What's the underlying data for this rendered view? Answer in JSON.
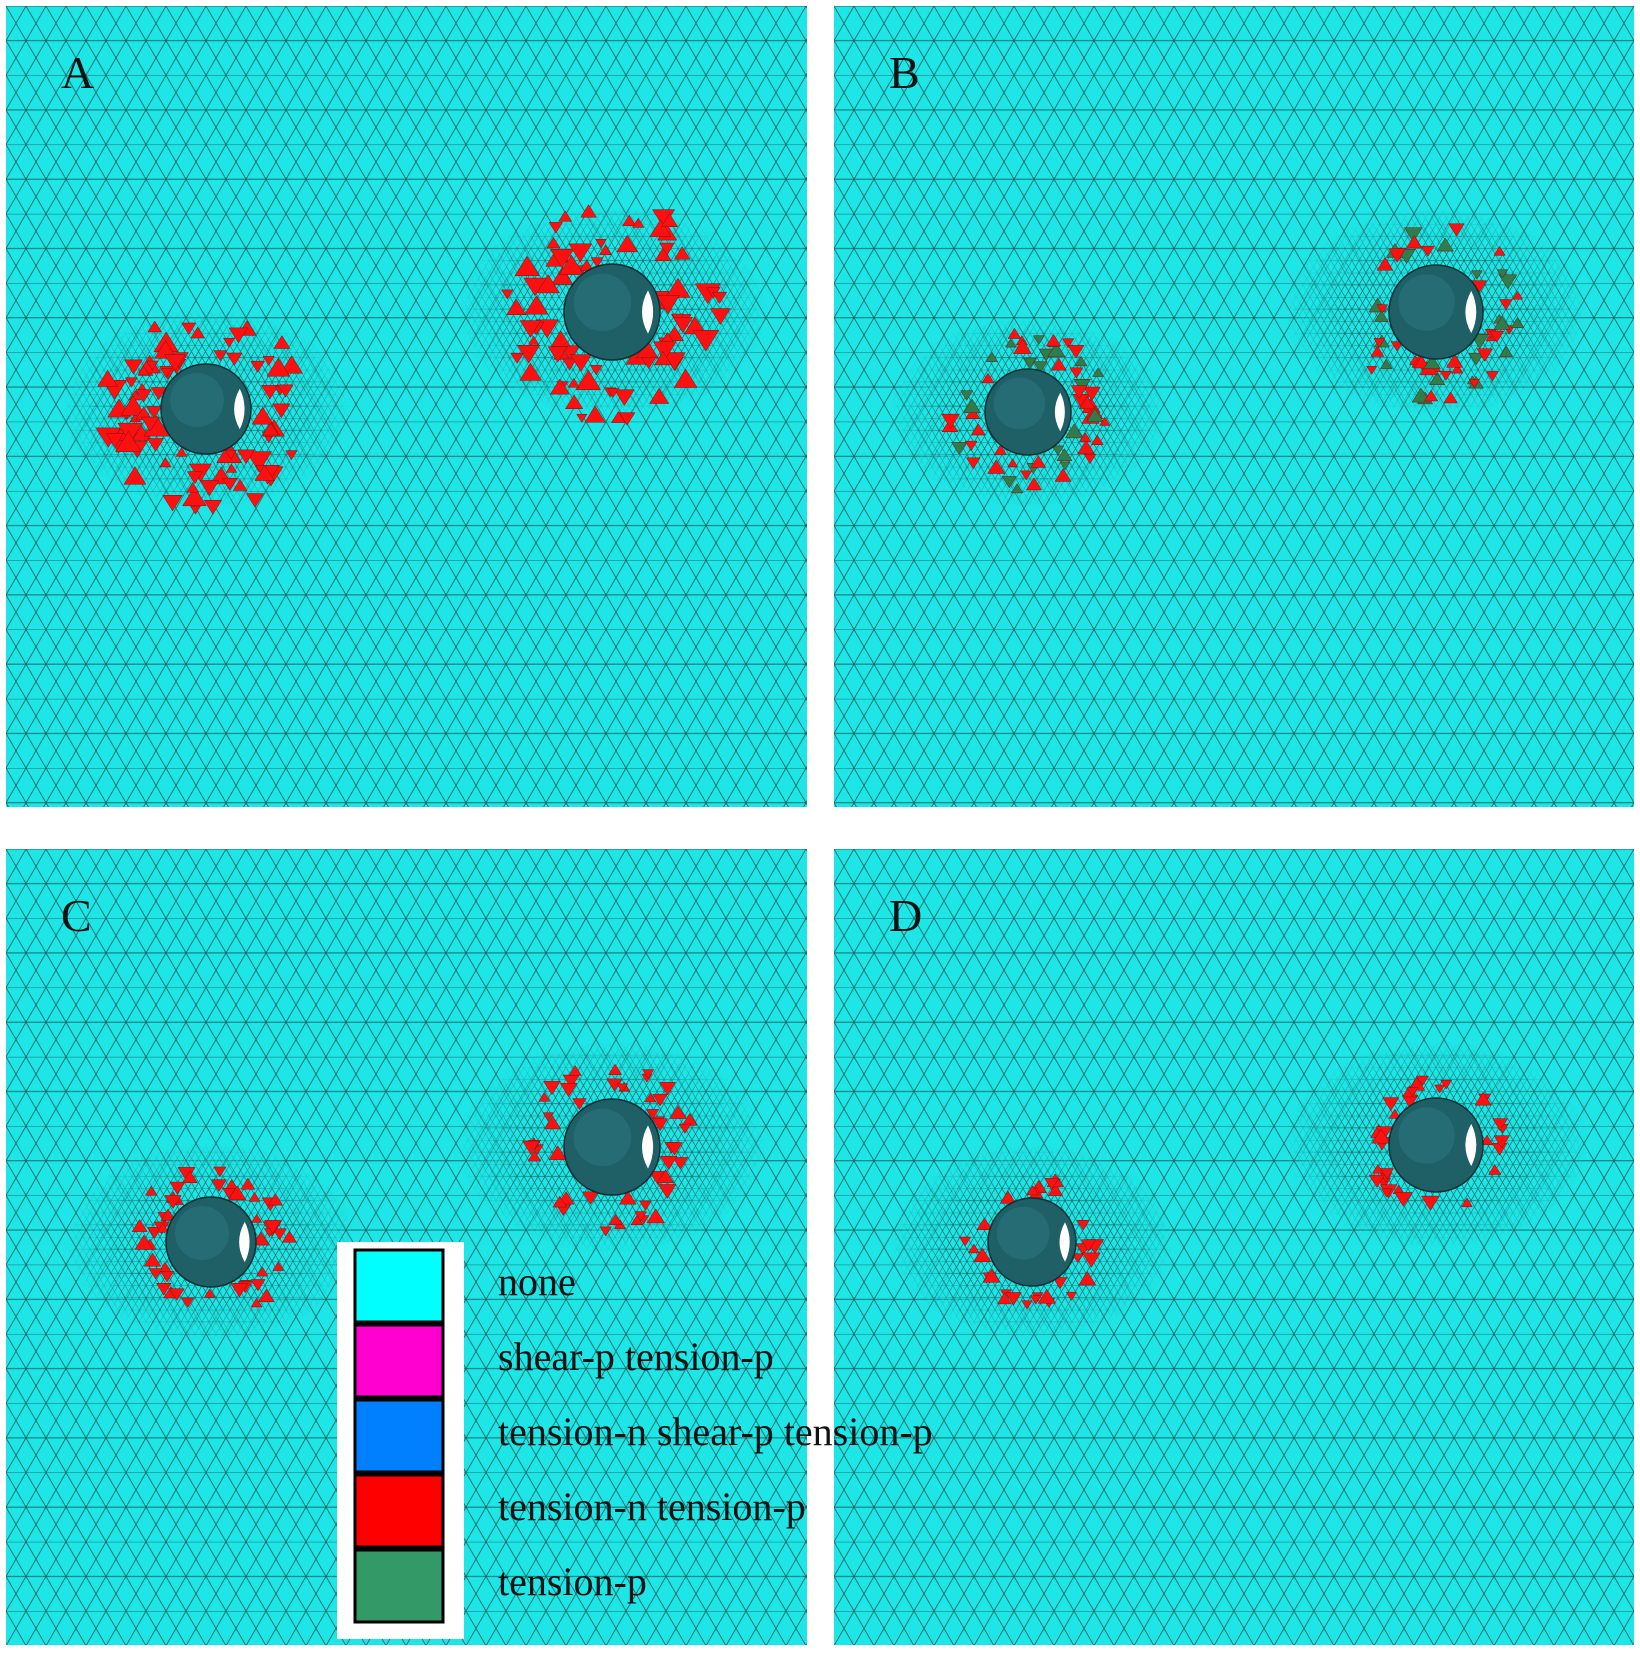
{
  "panels": [
    {
      "label": "A"
    },
    {
      "label": "B"
    },
    {
      "label": "C"
    },
    {
      "label": "D"
    }
  ],
  "legend": {
    "items": [
      {
        "label": "none",
        "color": "#00ffff"
      },
      {
        "label": "shear-p  tension-p",
        "color": "#ff00d0"
      },
      {
        "label": "tension-n shear-p  tension-p",
        "color": "#0080ff"
      },
      {
        "label": "tension-n  tension-p",
        "color": "#ff0000"
      },
      {
        "label": "tension-p",
        "color": "#339966"
      }
    ]
  }
}
